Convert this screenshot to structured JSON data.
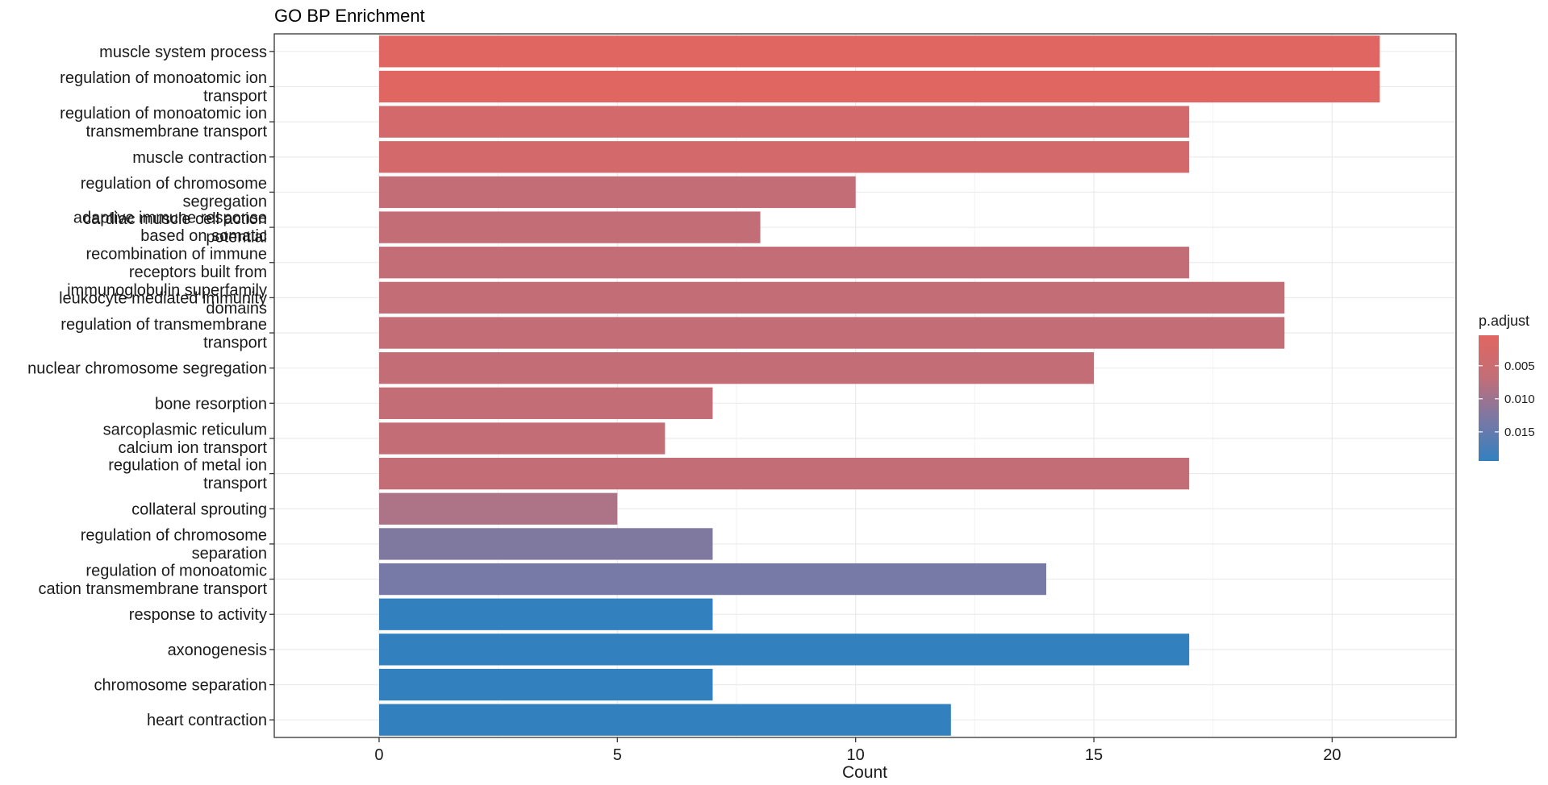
{
  "chart_data": {
    "type": "bar",
    "orientation": "horizontal",
    "title": "GO BP Enrichment",
    "xlabel": "Count",
    "ylabel": "",
    "xlim": [
      -2.2,
      22.6
    ],
    "xticks": [
      0,
      5,
      10,
      15,
      20
    ],
    "grid": true,
    "legend": {
      "title": "p.adjust",
      "placement": "right",
      "ticks": [
        "0.005",
        "0.010",
        "0.015"
      ],
      "range": [
        0.0004,
        0.0194
      ],
      "tick_values": [
        0.005,
        0.01,
        0.015
      ],
      "colors": [
        "#E06661",
        "#C36E77",
        "#7A78A5",
        "#3380BF"
      ]
    },
    "categories": [
      "muscle system process",
      "regulation of monoatomic ion\ntransport",
      "regulation of monoatomic ion\ntransmembrane transport",
      "muscle contraction",
      "regulation of chromosome\nsegregation",
      "adaptive immune response\nbased on somatic\nrecombination of immune\nreceptors built from\nimmunoglobulin superfamily\ndomains",
      "cardiac muscle cell action\npotential",
      "leukocyte mediated immunity",
      "regulation of transmembrane\ntransport",
      "nuclear chromosome segregation",
      "bone resorption",
      "sarcoplasmic reticulum\ncalcium ion transport",
      "regulation of metal ion\ntransport",
      "collateral sprouting",
      "regulation of chromosome\nseparation",
      "regulation of monoatomic\ncation transmembrane transport",
      "response to activity",
      "axonogenesis",
      "chromosome separation",
      "heart contraction"
    ],
    "label_rows": [
      0,
      1,
      2,
      3,
      4,
      6,
      5,
      7,
      8,
      9,
      10,
      11,
      12,
      13,
      14,
      15,
      16,
      17,
      18,
      19
    ],
    "values": [
      21,
      21,
      17,
      17,
      10,
      17,
      8,
      19,
      19,
      15,
      7,
      6,
      17,
      5,
      7,
      14,
      7,
      17,
      7,
      12
    ],
    "bar_order": [
      0,
      1,
      2,
      3,
      4,
      6,
      5,
      7,
      8,
      9,
      10,
      11,
      12,
      13,
      14,
      15,
      16,
      17,
      18,
      19
    ],
    "bar_colors": [
      "#E06661",
      "#E06661",
      "#D3696A",
      "#D3696A",
      "#C36E77",
      "#C36E77",
      "#C36E77",
      "#C36E77",
      "#C36E77",
      "#C36E77",
      "#C36E77",
      "#C36E77",
      "#C36E77",
      "#AD7487",
      "#7F79A0",
      "#7779A6",
      "#3380BF",
      "#3380BF",
      "#3380BF",
      "#3380BF"
    ]
  }
}
